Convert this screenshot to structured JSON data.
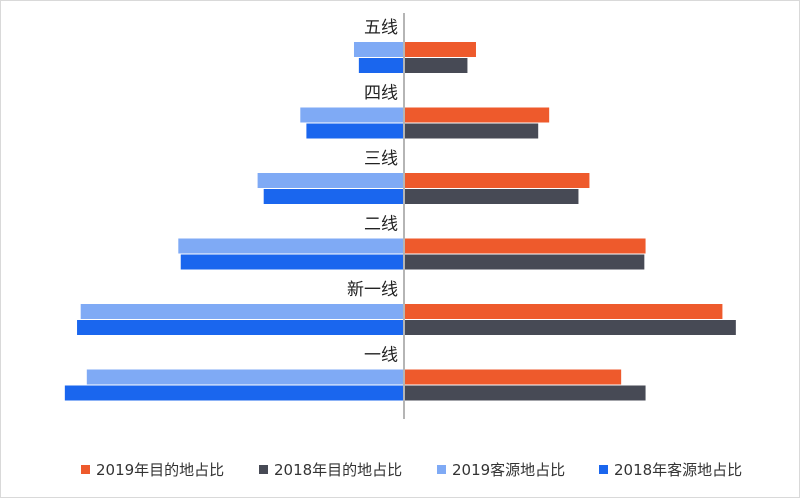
{
  "chart_data": {
    "type": "bar",
    "orientation": "horizontal-diverging",
    "categories": [
      "五线",
      "四线",
      "三线",
      "二线",
      "新一线",
      "一线"
    ],
    "series": [
      {
        "name": "2019年目的地占比",
        "side": "right",
        "color": "#ee5a2c",
        "values": [
          5.9,
          11.9,
          15.2,
          19.8,
          26.1,
          17.8
        ]
      },
      {
        "name": "2018年目的地占比",
        "side": "right",
        "color": "#474a55",
        "values": [
          5.2,
          11.0,
          14.3,
          19.7,
          27.2,
          19.8
        ]
      },
      {
        "name": "2019客源地占比",
        "side": "left",
        "color": "#7faaf5",
        "values": [
          4.1,
          8.5,
          12.0,
          18.5,
          26.5,
          26.0
        ]
      },
      {
        "name": "2018年客源地占比",
        "side": "left",
        "color": "#1a66ee",
        "values": [
          3.7,
          8.0,
          11.5,
          18.3,
          26.8,
          27.8
        ]
      }
    ],
    "xlim": [
      -30,
      30
    ],
    "grid": false,
    "legend_position": "bottom"
  }
}
